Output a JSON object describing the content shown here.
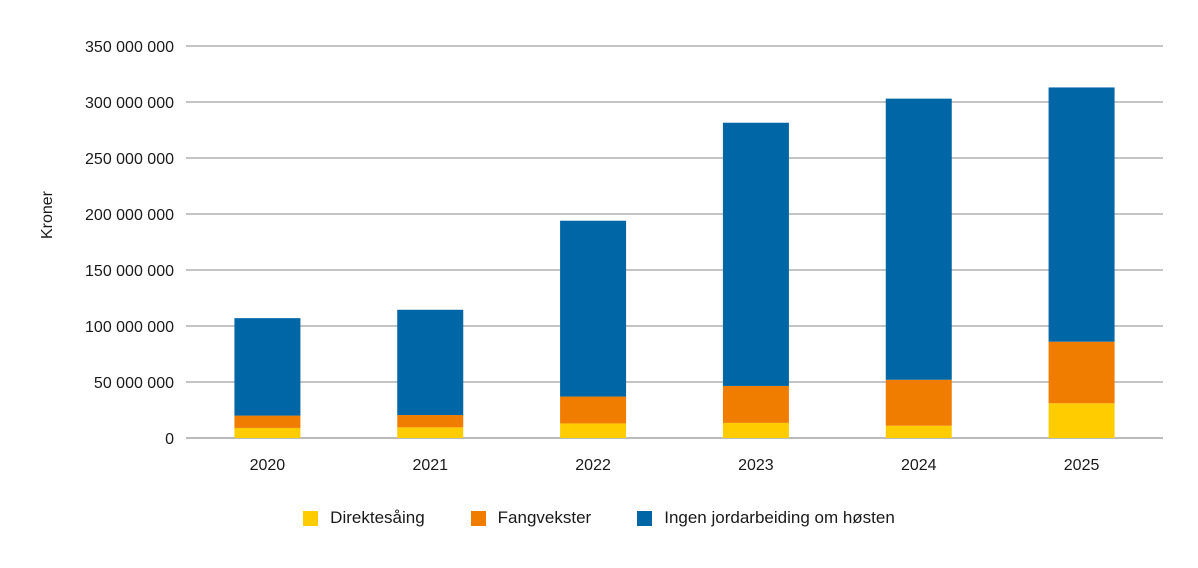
{
  "chart_data": {
    "type": "bar",
    "stacked": true,
    "categories": [
      "2020",
      "2021",
      "2022",
      "2023",
      "2024",
      "2025"
    ],
    "series": [
      {
        "name": "Direktesåing",
        "color": "#ffcc00",
        "values": [
          9000000,
          9500000,
          13000000,
          13500000,
          11000000,
          31000000
        ]
      },
      {
        "name": "Fangvekster",
        "color": "#f07d00",
        "values": [
          11000000,
          11000000,
          24000000,
          33000000,
          41000000,
          55000000
        ]
      },
      {
        "name": "Ingen jordarbeiding om høsten",
        "color": "#0066a6",
        "values": [
          87000000,
          94000000,
          157000000,
          235000000,
          251000000,
          227000000
        ]
      }
    ],
    "ylabel": "Kroner",
    "xlabel": "",
    "ylim": [
      0,
      350000000
    ],
    "yticks": [
      0,
      50000000,
      100000000,
      150000000,
      200000000,
      250000000,
      300000000,
      350000000
    ],
    "ytick_labels": [
      "0",
      "50 000 000",
      "100 000 000",
      "150 000 000",
      "200 000 000",
      "250 000 000",
      "300 000 000",
      "350 000 000"
    ],
    "grid": true,
    "legend_position": "bottom"
  }
}
